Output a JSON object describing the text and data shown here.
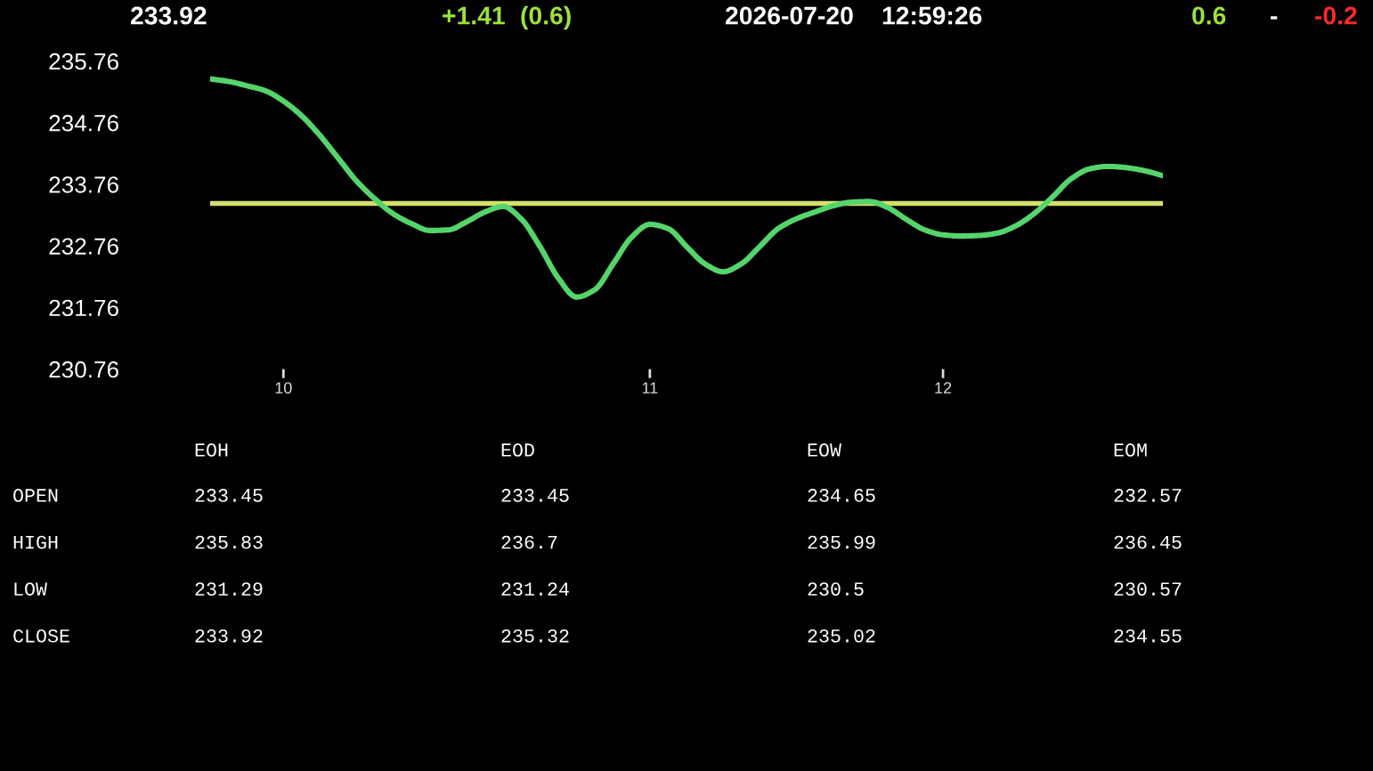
{
  "chart_data": [
    {
      "type": "line",
      "categories": [
        null,
        null,
        null,
        null,
        "10",
        null,
        null,
        null,
        null,
        null,
        null,
        null,
        null,
        null,
        null,
        null,
        null,
        null,
        null,
        null,
        null,
        null,
        null,
        null,
        "11",
        null,
        null,
        null,
        null,
        null,
        null,
        null,
        null,
        null,
        null,
        null,
        null,
        null,
        null,
        null,
        "12",
        null,
        null,
        null,
        null,
        null,
        null,
        null,
        null,
        null,
        null,
        null,
        null
      ],
      "series": [
        {
          "color": "#55d46b",
          "values": [
            235.47,
            235.43,
            235.36,
            235.28,
            235.11,
            234.87,
            234.55,
            234.18,
            233.81,
            233.52,
            233.28,
            233.12,
            233.01,
            233.02,
            233.15,
            233.31,
            233.4,
            233.19,
            232.75,
            232.24,
            231.93,
            232.05,
            232.47,
            232.9,
            233.11,
            233.04,
            232.75,
            232.47,
            232.34,
            232.47,
            232.75,
            233.04,
            233.2,
            233.31,
            233.41,
            233.47,
            233.48,
            233.38,
            233.19,
            233.02,
            232.94,
            232.92,
            232.93,
            232.97,
            233.09,
            233.29,
            233.56,
            233.85,
            234.01,
            234.05,
            234.03,
            233.98,
            233.9
          ]
        }
      ],
      "ylim": [
        230.76,
        235.76
      ],
      "yticks": [
        230.76,
        231.76,
        232.76,
        233.76,
        234.76,
        235.76
      ],
      "ref_lines": [
        {
          "axis": "y",
          "value": 233.45,
          "color": "#d4e06b"
        }
      ],
      "annotations": [
        "233.92",
        "+1.41",
        "(0.6)",
        "2026-07-20",
        "12:59:26",
        "0.6",
        "-",
        "-0.2"
      ]
    },
    {
      "type": "other",
      "categories": [
        "EOH",
        "EOD",
        "EOW",
        "EOM"
      ],
      "y_categories": [
        "OPEN",
        "HIGH",
        "LOW",
        "CLOSE"
      ],
      "cell_labels": [
        [
          "233.45",
          "233.45",
          "234.65",
          "232.57"
        ],
        [
          "235.83",
          "236.7",
          "235.99",
          "236.45"
        ],
        [
          "231.29",
          "231.24",
          "230.5",
          "230.57"
        ],
        [
          "233.92",
          "235.32",
          "235.02",
          "234.55"
        ]
      ]
    }
  ]
}
